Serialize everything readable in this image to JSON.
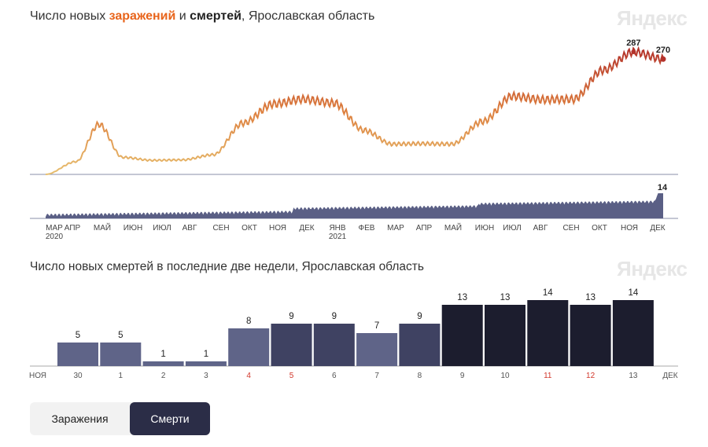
{
  "chart_top": {
    "title_prefix": "Число новых ",
    "title_infections": "заражений",
    "title_and": " и ",
    "title_deaths": "смертей",
    "title_suffix": ", Ярославская область",
    "logo": "Яндекс",
    "month_labels": [
      "МАР",
      "АПР",
      "МАЙ",
      "ИЮН",
      "ИЮЛ",
      "АВГ",
      "СЕН",
      "ОКТ",
      "НОЯ",
      "ДЕК",
      "ЯНВ",
      "ФЕВ",
      "МАР",
      "АПР",
      "МАЙ",
      "ИЮН",
      "ИЮЛ",
      "АВГ",
      "СЕН",
      "ОКТ",
      "НОЯ",
      "ДЕК"
    ],
    "year_labels": [
      "2020",
      "2021"
    ],
    "peak_label": "287",
    "last_label": "270",
    "deaths_last_label": "14",
    "colors": {
      "low": "#e3b368",
      "mid": "#dc7a3c",
      "high": "#b5332a",
      "deaths": "#5a5f85",
      "baseline": "#8a8fa8"
    }
  },
  "chart_data": [
    {
      "type": "line",
      "title": "Число новых заражений и смертей, Ярославская область",
      "x_range": [
        "2020-03",
        "2021-12"
      ],
      "series": [
        {
          "name": "заражений",
          "x": [
            "2020-03-15",
            "2020-04-15",
            "2020-05-08",
            "2020-06-01",
            "2020-07-01",
            "2020-08-01",
            "2020-09-01",
            "2020-10-01",
            "2020-11-01",
            "2020-12-01",
            "2021-01-01",
            "2021-02-01",
            "2021-03-01",
            "2021-04-01",
            "2021-05-01",
            "2021-06-01",
            "2021-07-01",
            "2021-08-01",
            "2021-09-01",
            "2021-10-01",
            "2021-11-01",
            "2021-12-01"
          ],
          "y": [
            0,
            30,
            117,
            40,
            33,
            34,
            46,
            120,
            165,
            176,
            167,
            103,
            71,
            72,
            71,
            124,
            183,
            175,
            176,
            244,
            287,
            270
          ]
        }
      ]
    },
    {
      "type": "area",
      "title": "",
      "series": [
        {
          "name": "смертей",
          "x_range": [
            "2020-03",
            "2021-12"
          ],
          "last_value": 14
        }
      ]
    },
    {
      "type": "bar",
      "title": "Число новых смертей в последние две недели, Ярославская область",
      "categories": [
        "30",
        "1",
        "2",
        "3",
        "4",
        "5",
        "6",
        "7",
        "8",
        "9",
        "10",
        "11",
        "12",
        "13"
      ],
      "values": [
        5,
        5,
        1,
        1,
        8,
        9,
        9,
        7,
        9,
        13,
        13,
        14,
        13,
        14
      ],
      "bar_colors": [
        "#5f6488",
        "#5f6488",
        "#5f6488",
        "#5f6488",
        "#5f6488",
        "#3f4262",
        "#3f4262",
        "#5f6488",
        "#3f4262",
        "#1c1d2e",
        "#1c1d2e",
        "#1c1d2e",
        "#1c1d2e",
        "#1c1d2e"
      ],
      "tick_colors": [
        "#555",
        "#555",
        "#555",
        "#555",
        "#d2372b",
        "#d2372b",
        "#555",
        "#555",
        "#555",
        "#555",
        "#555",
        "#d2372b",
        "#d2372b",
        "#555"
      ],
      "ylim": [
        0,
        14
      ]
    }
  ],
  "chart_bottom": {
    "title": "Число новых смертей в последние две недели, Ярославская область",
    "logo": "Яндекс",
    "start_month": "НОЯ",
    "end_month": "ДЕК"
  },
  "tabs": {
    "infections_label": "Заражения",
    "deaths_label": "Смерти",
    "active": "deaths"
  }
}
